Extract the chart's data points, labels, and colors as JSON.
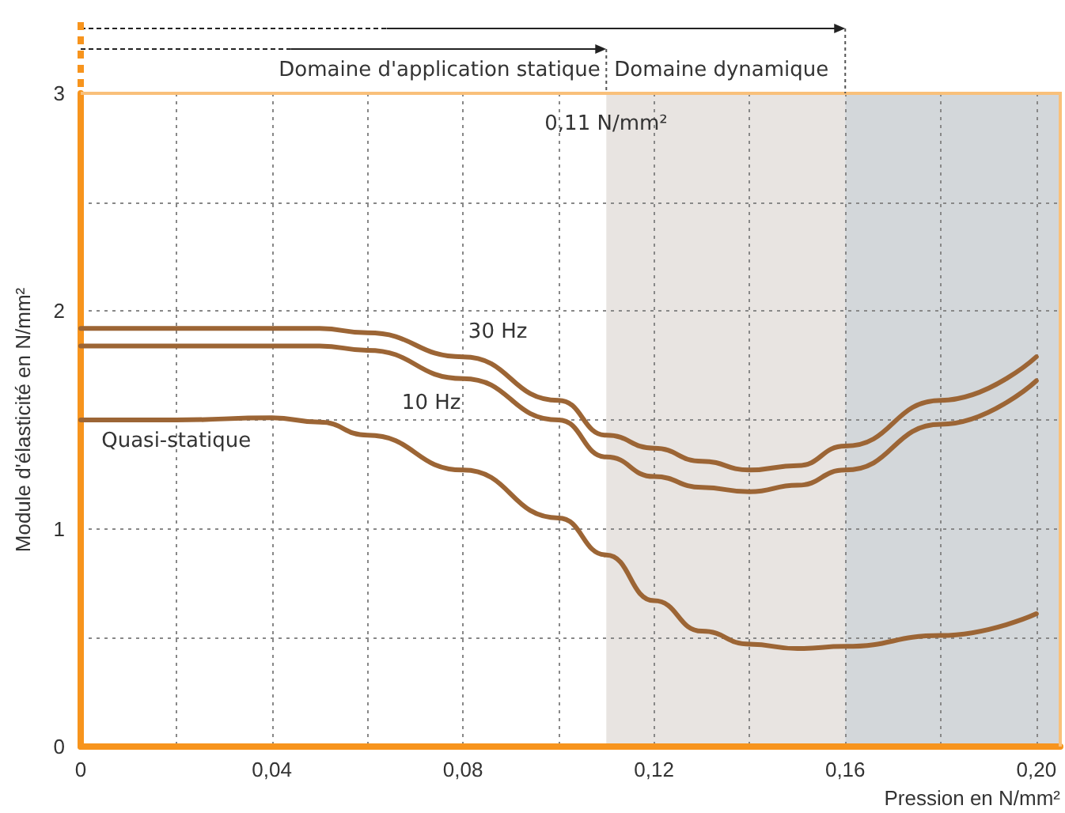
{
  "chart_data": {
    "type": "line",
    "xlabel": "Pression en N/mm²",
    "ylabel": "Module d'élasticité en N/mm²",
    "x": [
      0,
      0.02,
      0.04,
      0.05,
      0.06,
      0.08,
      0.1,
      0.11,
      0.12,
      0.13,
      0.14,
      0.15,
      0.16,
      0.18,
      0.2
    ],
    "series": [
      {
        "name": "30 Hz",
        "color": "#9c6535",
        "values": [
          1.92,
          1.92,
          1.92,
          1.92,
          1.9,
          1.79,
          1.59,
          1.43,
          1.37,
          1.31,
          1.27,
          1.29,
          1.38,
          1.59,
          1.79
        ]
      },
      {
        "name": "10 Hz",
        "color": "#9c6535",
        "values": [
          1.84,
          1.84,
          1.84,
          1.84,
          1.82,
          1.69,
          1.5,
          1.33,
          1.24,
          1.19,
          1.17,
          1.2,
          1.27,
          1.48,
          1.68
        ]
      },
      {
        "name": "Quasi-statique",
        "color": "#9c6535",
        "values": [
          1.5,
          1.5,
          1.51,
          1.49,
          1.43,
          1.27,
          1.05,
          0.88,
          0.67,
          0.53,
          0.47,
          0.45,
          0.46,
          0.51,
          0.61
        ]
      }
    ],
    "xlim": [
      0,
      0.205
    ],
    "xticks": [
      {
        "value": 0,
        "label": "0"
      },
      {
        "value": 0.02,
        "label": null
      },
      {
        "value": 0.04,
        "label": "0,04"
      },
      {
        "value": 0.06,
        "label": null
      },
      {
        "value": 0.08,
        "label": "0,08"
      },
      {
        "value": 0.1,
        "label": null
      },
      {
        "value": 0.12,
        "label": "0,12"
      },
      {
        "value": 0.14,
        "label": null
      },
      {
        "value": 0.16,
        "label": "0,16"
      },
      {
        "value": 0.18,
        "label": null
      },
      {
        "value": 0.2,
        "label": "0,20"
      }
    ],
    "ylim": [
      0,
      3
    ],
    "yticks": [
      0,
      {
        "value": 0.5,
        "label": null
      },
      1,
      {
        "value": 1.5,
        "label": null
      },
      2,
      {
        "value": 2.5,
        "label": null
      },
      3
    ],
    "bands": [
      {
        "axis": "x",
        "from": 0.11,
        "to": 0.16,
        "color": "#e8e4e1"
      },
      {
        "axis": "x",
        "from": 0.16,
        "to": 0.205,
        "color": "#d3d7da"
      }
    ],
    "annotations": [
      "Domaine d'application statique",
      "Domaine dynamique",
      {
        "text": "0,11 N/mm²",
        "x": 0.11,
        "y": 2.85
      }
    ],
    "grid": true,
    "legend": false,
    "marker": "none",
    "line_style": "solid"
  }
}
